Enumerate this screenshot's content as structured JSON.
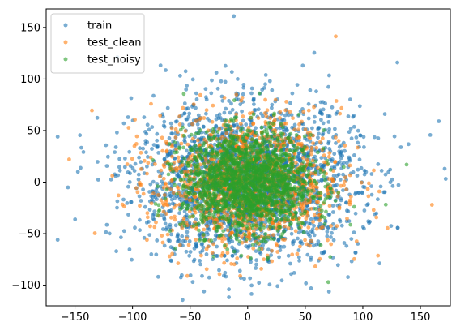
{
  "chart_data": {
    "type": "scatter",
    "title": "",
    "xlabel": "",
    "ylabel": "",
    "xlim": [
      -175,
      176
    ],
    "ylim": [
      -120,
      168
    ],
    "x_ticks": [
      -150,
      -100,
      -50,
      0,
      50,
      100,
      150
    ],
    "y_ticks": [
      -100,
      -50,
      0,
      50,
      100,
      150
    ],
    "x_tick_labels": [
      "−150",
      "−100",
      "−50",
      "0",
      "50",
      "100",
      "150"
    ],
    "y_tick_labels": [
      "−100",
      "−50",
      "0",
      "50",
      "100",
      "150"
    ],
    "grid": false,
    "legend_position": "top-left",
    "series": [
      {
        "name": "train",
        "color": "#1f77b4",
        "distribution": {
          "center": [
            0,
            0
          ],
          "spread": [
            48,
            38
          ],
          "approx_count": 2400
        }
      },
      {
        "name": "test_clean",
        "color": "#ff7f0e",
        "distribution": {
          "center": [
            0,
            0
          ],
          "spread": [
            40,
            33
          ],
          "approx_count": 1300
        }
      },
      {
        "name": "test_noisy",
        "color": "#2ca02c",
        "distribution": {
          "center": [
            0,
            0
          ],
          "spread": [
            28,
            24
          ],
          "approx_count": 1800
        }
      }
    ],
    "notable_points": [
      {
        "series": "train",
        "x": -12,
        "y": 161
      },
      {
        "series": "train",
        "x": 166,
        "y": 59
      },
      {
        "series": "train",
        "x": -165,
        "y": 44
      },
      {
        "series": "train",
        "x": -165,
        "y": -56
      },
      {
        "series": "test_clean",
        "x": 160,
        "y": -22
      },
      {
        "series": "test_clean",
        "x": -155,
        "y": 22
      },
      {
        "series": "train",
        "x": 55,
        "y": -103
      },
      {
        "series": "test_noisy",
        "x": 138,
        "y": 17
      },
      {
        "series": "train",
        "x": 130,
        "y": 116
      },
      {
        "series": "test_noisy",
        "x": 70,
        "y": -97
      }
    ]
  }
}
